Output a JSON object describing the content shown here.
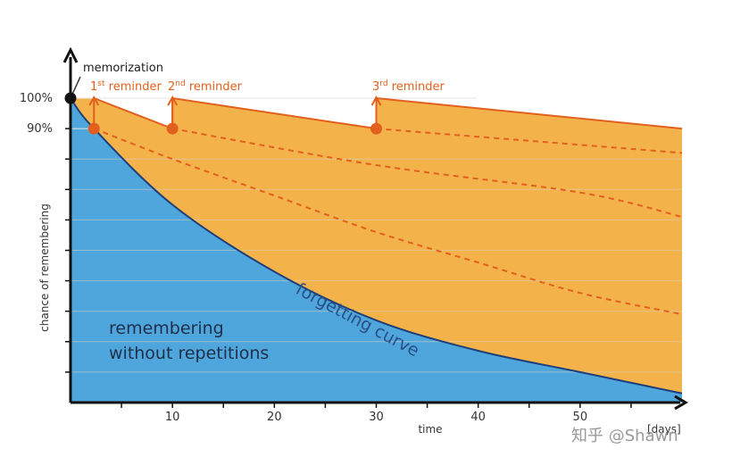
{
  "chart_data": {
    "type": "area",
    "x": [
      0,
      2.3,
      10,
      30,
      50,
      60
    ],
    "xlim": [
      0,
      60
    ],
    "ylim": [
      0,
      100
    ],
    "xticks": [
      10,
      20,
      30,
      40,
      50
    ],
    "yticks": [
      100,
      90
    ],
    "ytick_labels": [
      "100%",
      "90%"
    ],
    "xlabel": "time",
    "xunit": "[days]",
    "ylabel": "chance of remembering",
    "series": [
      {
        "name": "forgetting curve",
        "points": [
          [
            0,
            100
          ],
          [
            2.3,
            90
          ],
          [
            10,
            65
          ],
          [
            20,
            43
          ],
          [
            30,
            27
          ],
          [
            40,
            17
          ],
          [
            50,
            10
          ],
          [
            60,
            3
          ]
        ]
      },
      {
        "name": "",
        "points": [
          [
            2.3,
            90
          ],
          [
            10,
            80
          ],
          [
            20,
            68
          ],
          [
            30,
            56
          ],
          [
            40,
            46
          ],
          [
            50,
            36
          ],
          [
            60,
            29
          ]
        ]
      },
      {
        "name": "",
        "points": [
          [
            10,
            90
          ],
          [
            30,
            78
          ],
          [
            50,
            69
          ],
          [
            60,
            61
          ]
        ]
      },
      {
        "name": "",
        "points": [
          [
            30,
            90
          ],
          [
            45,
            86
          ],
          [
            60,
            82
          ]
        ]
      },
      {
        "name": "",
        "points": [
          [
            2.3,
            100
          ],
          [
            10,
            90
          ],
          [
            10,
            100
          ],
          [
            30,
            90
          ],
          [
            30,
            100
          ],
          [
            60,
            90
          ]
        ]
      }
    ],
    "markers": [
      {
        "label": "memorization",
        "x": 0,
        "y": 100
      },
      {
        "label": "1st reminder",
        "base": "1",
        "sup": "st",
        "rest": " reminder",
        "x": 2.3,
        "y": 90
      },
      {
        "label": "2nd reminder",
        "base": "2",
        "sup": "nd",
        "rest": " reminder",
        "x": 10,
        "y": 90
      },
      {
        "label": "3rd reminder",
        "base": "3",
        "sup": "rd",
        "rest": " reminder",
        "x": 30,
        "y": 90
      }
    ],
    "annotations": {
      "forgetting_curve": "forgetting curve",
      "without_line1": "remembering",
      "without_line2": "without repetitions"
    },
    "grid": true
  },
  "colors": {
    "blue_area": "#4ea6dc",
    "blue_line": "#1f3f7a",
    "orange_area": "#f4b24a",
    "orange_line": "#e2601d",
    "grid": "#d9d0bf",
    "axis": "#111111"
  },
  "watermark": "知乎 @Shawn"
}
